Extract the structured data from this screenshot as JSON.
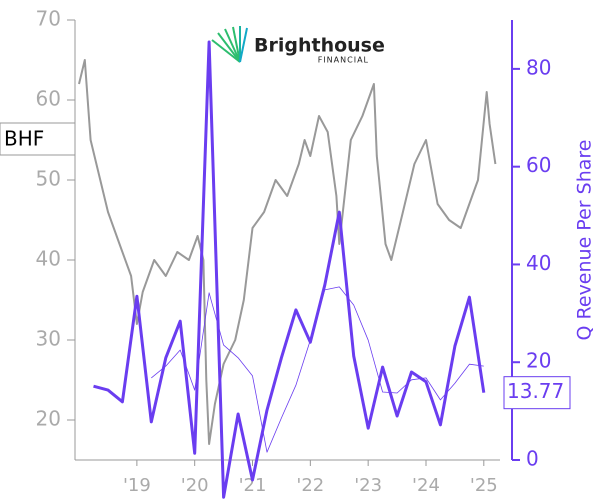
{
  "chart_data": {
    "type": "line",
    "logo": {
      "name": "Brighthouse",
      "tagline": "FINANCIAL"
    },
    "y2_label": "Q Revenue Per Share",
    "xlim": [
      2017.93,
      2025.28
    ],
    "xticks": [
      {
        "value": 2019,
        "label": "'19"
      },
      {
        "value": 2020,
        "label": "'20"
      },
      {
        "value": 2021,
        "label": "'21"
      },
      {
        "value": 2022,
        "label": "'22"
      },
      {
        "value": 2023,
        "label": "'23"
      },
      {
        "value": 2024,
        "label": "'24"
      },
      {
        "value": 2025,
        "label": "'25"
      }
    ],
    "ylim": [
      15,
      70
    ],
    "yticks": [
      20,
      30,
      40,
      50,
      60,
      70
    ],
    "y2lim": [
      0,
      90
    ],
    "y2ticks": [
      0,
      20,
      40,
      60,
      80
    ],
    "series": [
      {
        "name": "BHF",
        "color": "#999999",
        "axis": "y",
        "x": [
          2018.0,
          2018.1,
          2018.2,
          2018.3,
          2018.5,
          2018.7,
          2018.9,
          2019.0,
          2019.1,
          2019.3,
          2019.5,
          2019.7,
          2019.9,
          2020.05,
          2020.15,
          2020.2,
          2020.25,
          2020.35,
          2020.5,
          2020.7,
          2020.85,
          2021.0,
          2021.2,
          2021.4,
          2021.6,
          2021.8,
          2021.9,
          2022.0,
          2022.15,
          2022.3,
          2022.45,
          2022.5,
          2022.7,
          2022.9,
          2023.1,
          2023.15,
          2023.3,
          2023.4,
          2023.6,
          2023.8,
          2024.0,
          2024.2,
          2024.4,
          2024.6,
          2024.8,
          2024.9,
          2025.05,
          2025.1,
          2025.2
        ],
        "values": [
          62,
          65,
          55,
          52,
          46,
          42,
          38,
          32,
          36,
          40,
          38,
          41,
          40,
          43,
          40,
          25,
          17,
          22,
          27,
          30,
          35,
          44,
          46,
          50,
          48,
          52,
          55,
          53,
          58,
          56,
          48,
          42,
          55,
          58,
          62,
          53,
          42,
          40,
          46,
          52,
          55,
          47,
          45,
          44,
          48,
          50,
          61,
          57,
          52
        ]
      },
      {
        "color": "#6a3df0",
        "axis": "y2",
        "x": [
          2018.25,
          2018.5,
          2018.75,
          2019.0,
          2019.25,
          2019.5,
          2019.75,
          2020.0,
          2020.25,
          2020.5,
          2020.75,
          2021.0,
          2021.25,
          2021.5,
          2021.75,
          2022.0,
          2022.25,
          2022.5,
          2022.75,
          2023.0,
          2023.25,
          2023.5,
          2023.75,
          2024.0,
          2024.25,
          2024.5,
          2024.75,
          2025.0
        ],
        "values": [
          15.1,
          14.3,
          11.9,
          33.5,
          7.8,
          20.9,
          28.4,
          1.4,
          85.5,
          -7.6,
          9.4,
          -4.1,
          10.2,
          20.9,
          30.7,
          24.1,
          35.8,
          50.7,
          21.3,
          6.5,
          19.0,
          9.0,
          18.0,
          16.0,
          7.2,
          23.3,
          33.3,
          13.77
        ]
      },
      {
        "color": "#6a3df0",
        "axis": "y2",
        "x": [
          2019.25,
          2019.5,
          2019.75,
          2020.0,
          2020.25,
          2020.5,
          2020.75,
          2021.0,
          2021.25,
          2021.5,
          2021.75,
          2022.0,
          2022.25,
          2022.5,
          2022.75,
          2023.0,
          2023.25,
          2023.5,
          2023.75,
          2024.0,
          2024.25,
          2024.5,
          2024.75,
          2025.0
        ],
        "values": [
          16.8,
          19.2,
          22.5,
          14.3,
          34.2,
          23.5,
          20.9,
          17.2,
          1.6,
          8.6,
          15.3,
          24.5,
          34.8,
          35.4,
          31.7,
          24.5,
          13.9,
          13.7,
          16.4,
          16.8,
          12.3,
          15.7,
          19.6,
          19.2
        ]
      }
    ]
  }
}
